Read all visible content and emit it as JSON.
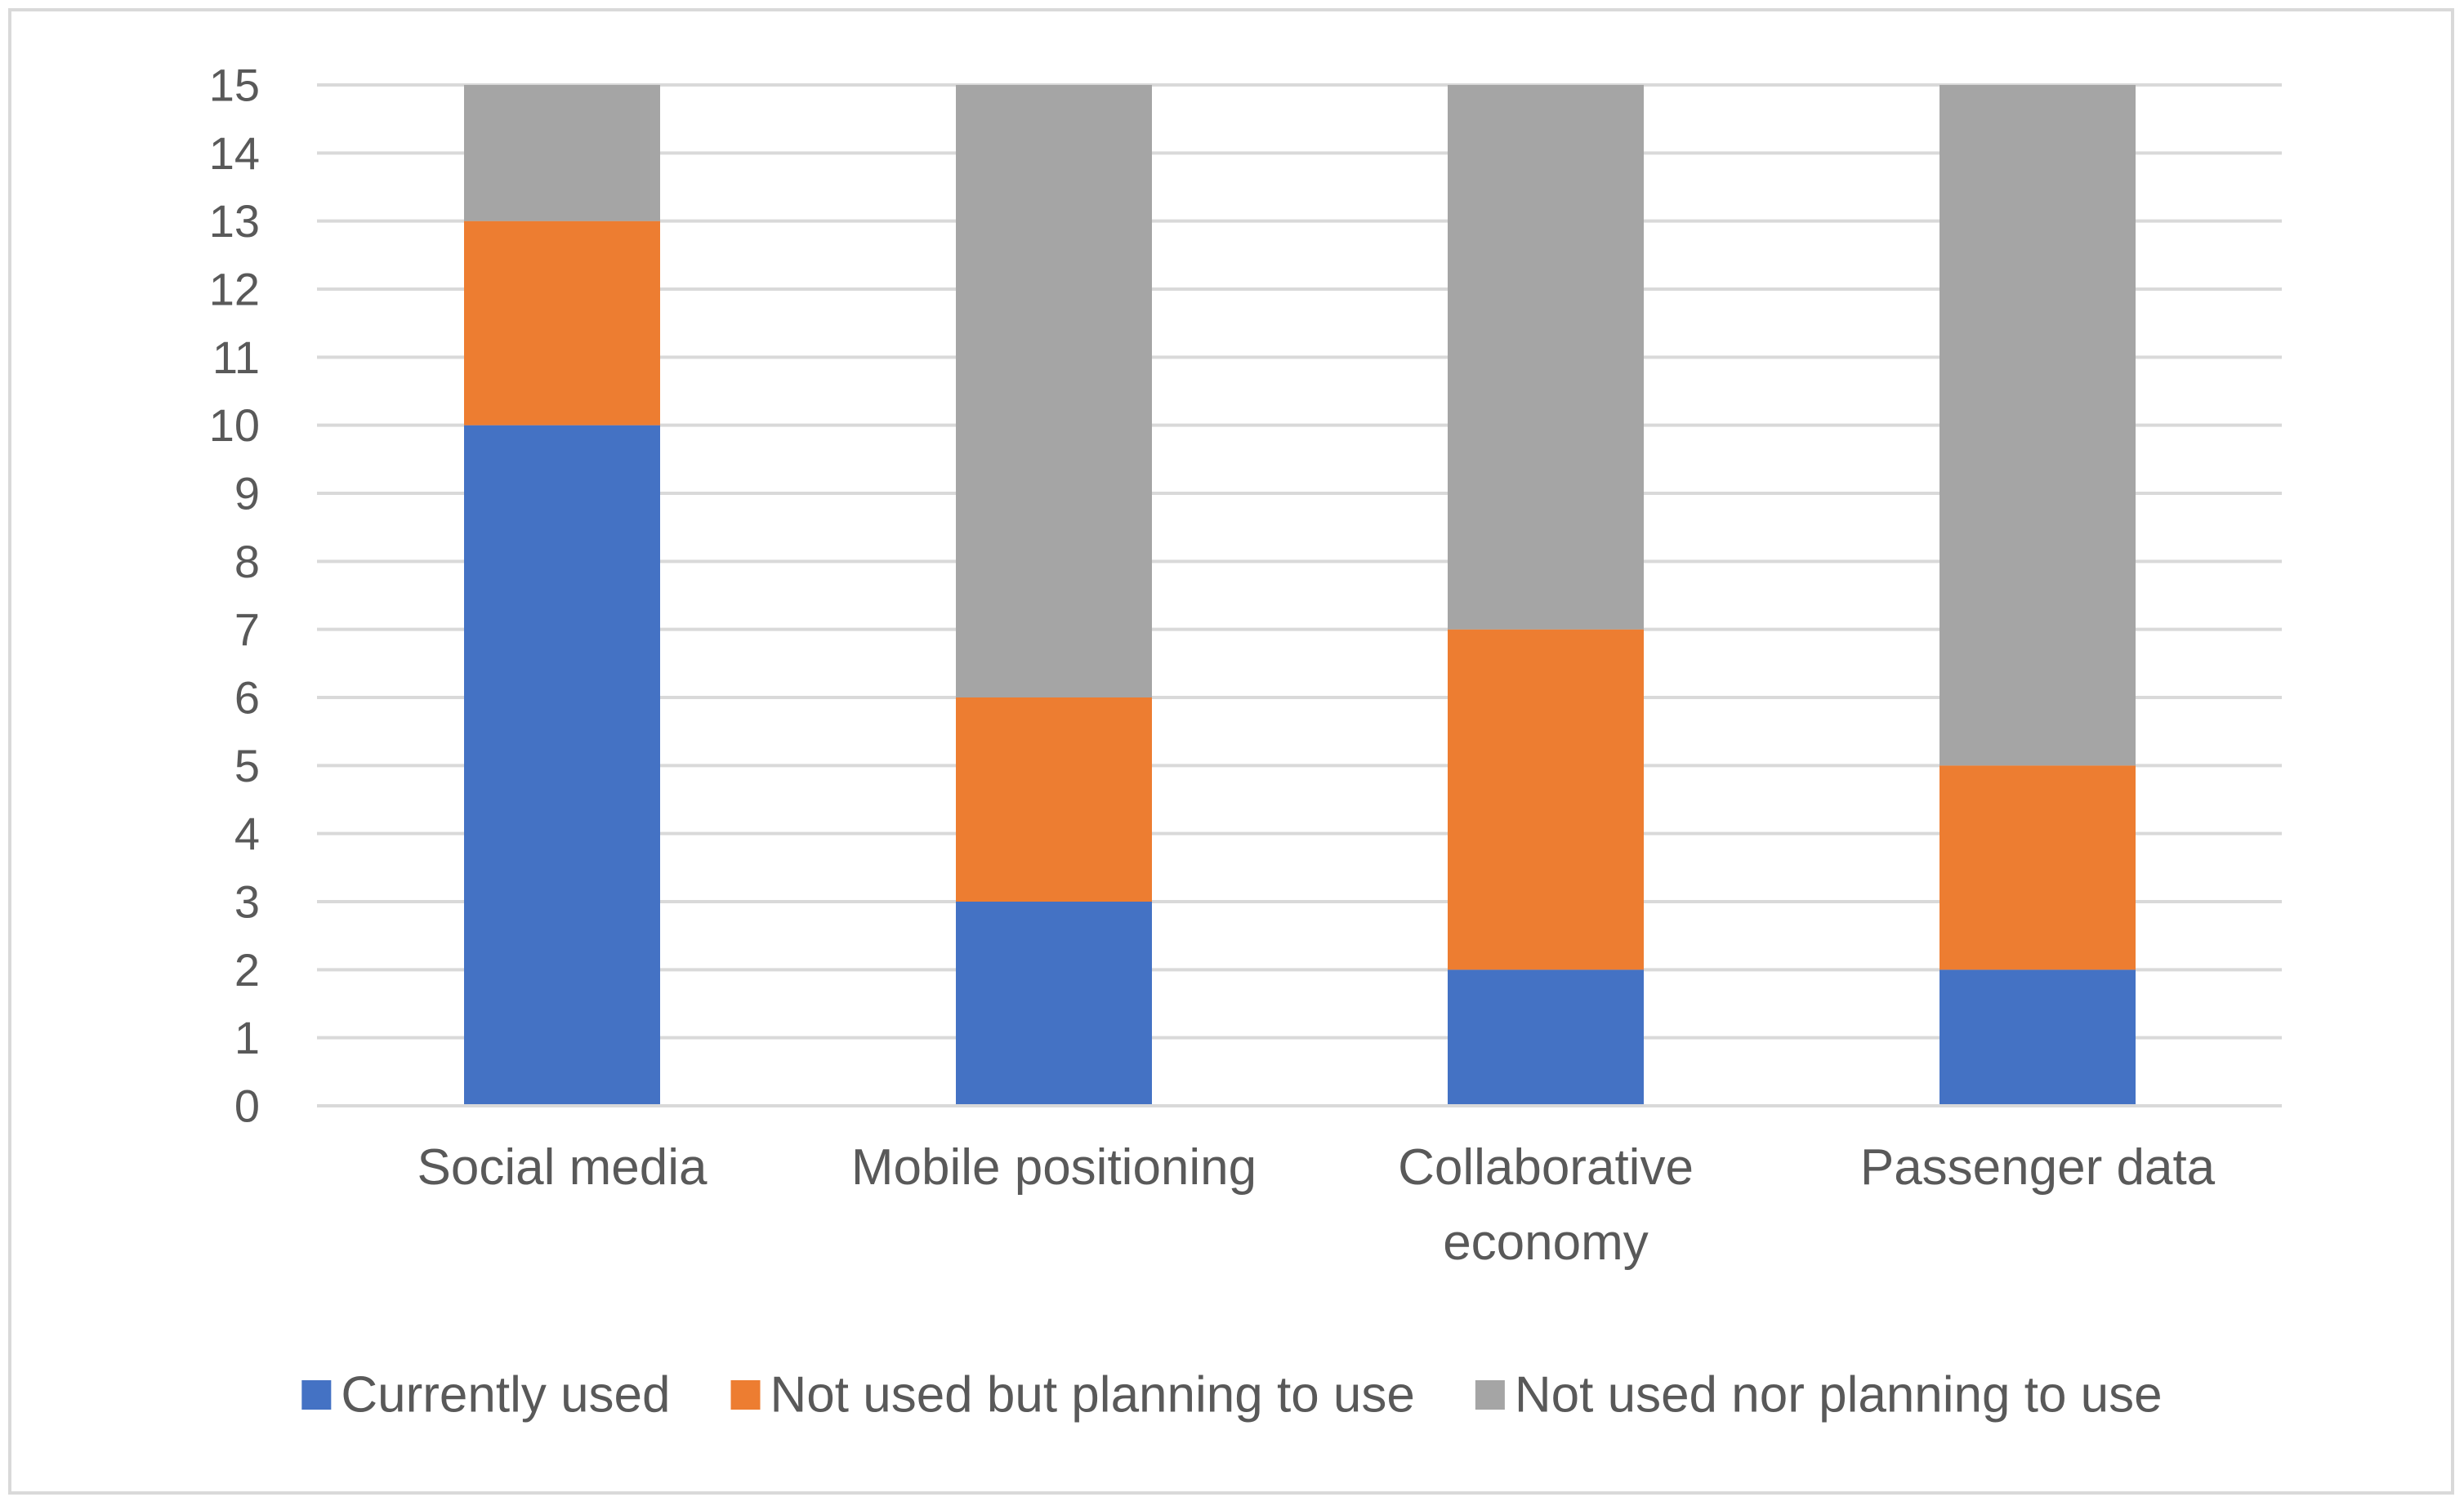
{
  "chart_data": {
    "type": "bar",
    "stacked": true,
    "title": "",
    "xlabel": "",
    "ylabel": "",
    "ylim": [
      0,
      15
    ],
    "yticks": [
      0,
      1,
      2,
      3,
      4,
      5,
      6,
      7,
      8,
      9,
      10,
      11,
      12,
      13,
      14,
      15
    ],
    "grid": true,
    "legend_position": "bottom",
    "categories": [
      [
        "Social media"
      ],
      [
        "Mobile positioning"
      ],
      [
        "Collaborative",
        "economy"
      ],
      [
        "Passenger data"
      ]
    ],
    "series": [
      {
        "name": "Currently used",
        "color": "#4472C4",
        "values": [
          10,
          3,
          2,
          2
        ]
      },
      {
        "name": "Not used but planning to use",
        "color": "#ED7D31",
        "values": [
          3,
          3,
          5,
          3
        ]
      },
      {
        "name": "Not used nor planning to use",
        "color": "#A5A5A5",
        "values": [
          2,
          9,
          8,
          10
        ]
      }
    ]
  }
}
